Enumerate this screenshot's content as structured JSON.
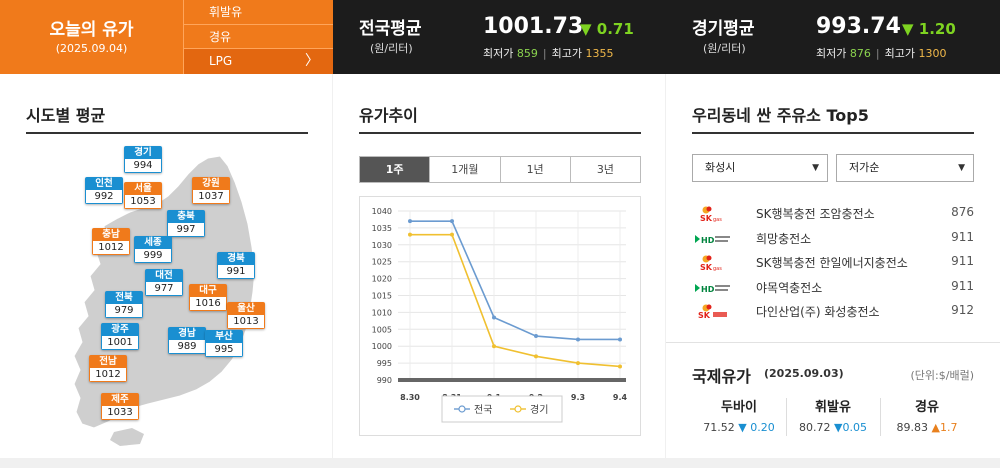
{
  "header": {
    "today_title": "오늘의 유가",
    "today_date": "(2025.09.04)",
    "fuel_tabs": [
      {
        "label": "휘발유",
        "active": false
      },
      {
        "label": "경유",
        "active": false
      },
      {
        "label": "LPG",
        "active": true
      }
    ],
    "tab_arrow": "〉",
    "national": {
      "name": "전국평균",
      "unit": "(원/리터)",
      "price": "1001.73",
      "change": "▼ 0.71",
      "min_label": "최저가",
      "min": "859",
      "sep": "|",
      "max_label": "최고가",
      "max": "1355"
    },
    "gyeonggi": {
      "name": "경기평균",
      "unit": "(원/리터)",
      "price": "993.74",
      "change": "▼ 1.20",
      "min_label": "최저가",
      "min": "876",
      "sep": "|",
      "max_label": "최고가",
      "max": "1300"
    }
  },
  "regions_panel": {
    "title": "시도별 평균",
    "regions": [
      {
        "name": "경기",
        "value": "994",
        "color": "blue"
      },
      {
        "name": "인천",
        "value": "992",
        "color": "blue"
      },
      {
        "name": "서울",
        "value": "1053",
        "color": "orange"
      },
      {
        "name": "강원",
        "value": "1037",
        "color": "orange"
      },
      {
        "name": "충북",
        "value": "997",
        "color": "blue"
      },
      {
        "name": "충남",
        "value": "1012",
        "color": "orange"
      },
      {
        "name": "세종",
        "value": "999",
        "color": "blue"
      },
      {
        "name": "경북",
        "value": "991",
        "color": "blue"
      },
      {
        "name": "대전",
        "value": "977",
        "color": "blue"
      },
      {
        "name": "대구",
        "value": "1016",
        "color": "orange"
      },
      {
        "name": "전북",
        "value": "979",
        "color": "blue"
      },
      {
        "name": "울산",
        "value": "1013",
        "color": "orange"
      },
      {
        "name": "광주",
        "value": "1001",
        "color": "blue"
      },
      {
        "name": "경남",
        "value": "989",
        "color": "blue"
      },
      {
        "name": "부산",
        "value": "995",
        "color": "blue"
      },
      {
        "name": "전남",
        "value": "1012",
        "color": "orange"
      },
      {
        "name": "제주",
        "value": "1033",
        "color": "orange"
      }
    ]
  },
  "trend_panel": {
    "title": "유가추이",
    "tabs": [
      {
        "label": "1주",
        "active": true
      },
      {
        "label": "1개월",
        "active": false
      },
      {
        "label": "1년",
        "active": false
      },
      {
        "label": "3년",
        "active": false
      }
    ]
  },
  "chart_data": {
    "type": "line",
    "categories": [
      "8.30",
      "8.31",
      "9.1",
      "9.2",
      "9.3",
      "9.4"
    ],
    "series": [
      {
        "name": "전국",
        "color": "#6b9bd0",
        "values": [
          1037,
          1037,
          1008.5,
          1003,
          1002,
          1002
        ]
      },
      {
        "name": "경기",
        "color": "#f0c030",
        "values": [
          1033,
          1033,
          1000,
          997,
          995,
          994
        ]
      }
    ],
    "yticks": [
      990,
      995,
      1000,
      1005,
      1010,
      1015,
      1020,
      1025,
      1030,
      1035,
      1040
    ],
    "ylim": [
      990,
      1040
    ],
    "grid": true,
    "legend": "bottom"
  },
  "top5_panel": {
    "title": "우리동네 싼 주유소 Top5",
    "region_select": "화성시",
    "sort_select": "저가순",
    "caret": "▼",
    "stations": [
      {
        "brand": "SK gas",
        "name": "SK행복충전 조암충전소",
        "price": "876"
      },
      {
        "brand": "HD HYUNDAI OILBANK",
        "name": "희망충전소",
        "price": "911"
      },
      {
        "brand": "SK gas",
        "name": "SK행복충전 한일에너지충전소",
        "price": "911"
      },
      {
        "brand": "HD HYUNDAI OILBANK",
        "name": "야목역충전소",
        "price": "911"
      },
      {
        "brand": "SK 에너지",
        "name": "다인산업(주) 화성충전소",
        "price": "912"
      }
    ]
  },
  "intl_panel": {
    "title": "국제유가",
    "date": "(2025.09.03)",
    "unit": "(단위:$/배럴)",
    "items": [
      {
        "name": "두바이",
        "price": "71.52",
        "change": "▼ 0.20",
        "dir": "down"
      },
      {
        "name": "휘발유",
        "price": "80.72",
        "change": "▼0.05",
        "dir": "down"
      },
      {
        "name": "경유",
        "price": "89.83",
        "change": "▲1.7",
        "dir": "up"
      }
    ]
  },
  "colors": {
    "accent_orange": "#f07a1b",
    "region_blue": "#1a8fd1",
    "price_down_green": "#7ed321",
    "dark_band": "#1c1c1c"
  }
}
